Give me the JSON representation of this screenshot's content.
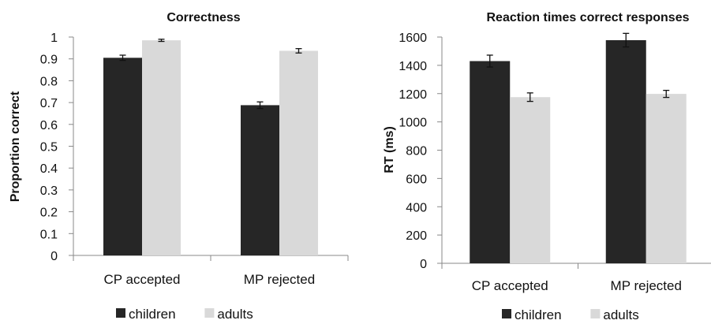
{
  "chart_data": [
    {
      "type": "bar",
      "title": "Correctness",
      "ylabel": "Proportion correct",
      "xlabel": "",
      "categories": [
        "CP accepted",
        "MP rejected"
      ],
      "ylim": [
        0,
        1
      ],
      "yticks": [
        "0",
        "0.1",
        "0.2",
        "0.3",
        "0.4",
        "0.5",
        "0.6",
        "0.7",
        "0.8",
        "0.9",
        "1"
      ],
      "series": [
        {
          "name": "children",
          "color": "#262626",
          "values": [
            0.905,
            0.688
          ],
          "errors": [
            0.012,
            0.015
          ]
        },
        {
          "name": "adults",
          "color": "#d9d9d9",
          "values": [
            0.985,
            0.937
          ],
          "errors": [
            0.005,
            0.01
          ]
        }
      ],
      "grid": false,
      "legend": "bottom"
    },
    {
      "type": "bar",
      "title": "Reaction times correct responses",
      "ylabel": "RT (ms)",
      "xlabel": "",
      "categories": [
        "CP accepted",
        "MP rejected"
      ],
      "ylim": [
        0,
        1600
      ],
      "yticks": [
        "0",
        "200",
        "400",
        "600",
        "800",
        "1000",
        "1200",
        "1400",
        "1600"
      ],
      "series": [
        {
          "name": "children",
          "color": "#262626",
          "values": [
            1430,
            1578
          ],
          "errors": [
            42,
            48
          ]
        },
        {
          "name": "adults",
          "color": "#d9d9d9",
          "values": [
            1175,
            1198
          ],
          "errors": [
            30,
            25
          ]
        }
      ],
      "grid": false,
      "legend": "bottom"
    }
  ]
}
